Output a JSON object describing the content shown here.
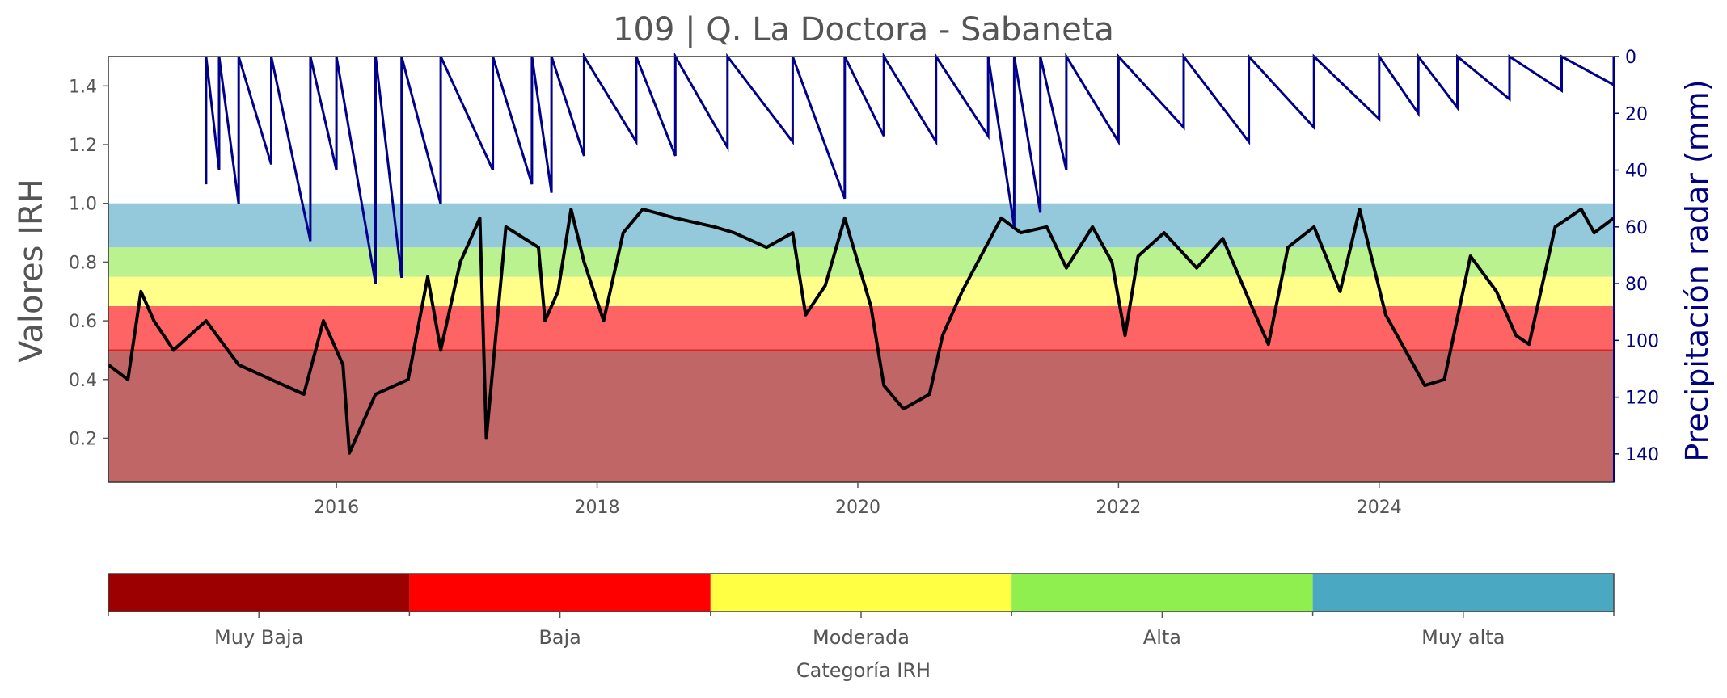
{
  "chart_data": {
    "type": "line",
    "title": "109 | Q. La Doctora - Sabaneta",
    "ylabel": "Valores IRH",
    "y2label": "Precipitación radar (mm)",
    "xlim": [
      2014.25,
      2025.8
    ],
    "ylim": [
      0.05,
      1.5
    ],
    "y2lim": [
      150,
      0
    ],
    "x_ticks": [
      2016,
      2018,
      2020,
      2022,
      2024
    ],
    "y_ticks": [
      0.2,
      0.4,
      0.6,
      0.8,
      1.0,
      1.2,
      1.4
    ],
    "y2_ticks": [
      0,
      20,
      40,
      60,
      80,
      100,
      120,
      140
    ],
    "bands": [
      {
        "from": 0.05,
        "to": 0.5,
        "color": "#c06666"
      },
      {
        "from": 0.5,
        "to": 0.65,
        "color": "#ff6464"
      },
      {
        "from": 0.65,
        "to": 0.75,
        "color": "#ffff8a"
      },
      {
        "from": 0.75,
        "to": 0.85,
        "color": "#b9f28f"
      },
      {
        "from": 0.85,
        "to": 1.0,
        "color": "#94c9dc"
      }
    ],
    "threshold_line": {
      "y": 0.5,
      "color": "#dd2222"
    },
    "series": [
      {
        "axis": "left",
        "color": "#000000",
        "x": [
          2014.25,
          2014.4,
          2014.5,
          2014.6,
          2014.75,
          2015.0,
          2015.25,
          2015.5,
          2015.75,
          2015.9,
          2016.05,
          2016.1,
          2016.3,
          2016.55,
          2016.7,
          2016.8,
          2016.95,
          2017.1,
          2017.15,
          2017.3,
          2017.55,
          2017.6,
          2017.7,
          2017.8,
          2017.9,
          2018.05,
          2018.2,
          2018.35,
          2018.6,
          2018.9,
          2019.05,
          2019.3,
          2019.5,
          2019.6,
          2019.75,
          2019.9,
          2020.1,
          2020.2,
          2020.35,
          2020.55,
          2020.65,
          2020.8,
          2021.1,
          2021.25,
          2021.45,
          2021.6,
          2021.8,
          2021.95,
          2022.05,
          2022.15,
          2022.35,
          2022.6,
          2022.8,
          2023.05,
          2023.15,
          2023.3,
          2023.5,
          2023.7,
          2023.85,
          2024.05,
          2024.2,
          2024.35,
          2024.5,
          2024.7,
          2024.9,
          2025.05,
          2025.15,
          2025.35,
          2025.55,
          2025.65,
          2025.8
        ],
        "y": [
          0.45,
          0.4,
          0.7,
          0.6,
          0.5,
          0.6,
          0.45,
          0.4,
          0.35,
          0.6,
          0.45,
          0.15,
          0.35,
          0.4,
          0.75,
          0.5,
          0.8,
          0.95,
          0.2,
          0.92,
          0.85,
          0.6,
          0.7,
          0.98,
          0.8,
          0.6,
          0.9,
          0.98,
          0.95,
          0.92,
          0.9,
          0.85,
          0.9,
          0.62,
          0.72,
          0.95,
          0.65,
          0.38,
          0.3,
          0.35,
          0.55,
          0.7,
          0.95,
          0.9,
          0.92,
          0.78,
          0.92,
          0.8,
          0.55,
          0.82,
          0.9,
          0.78,
          0.88,
          0.62,
          0.52,
          0.85,
          0.92,
          0.7,
          0.98,
          0.62,
          0.5,
          0.38,
          0.4,
          0.82,
          0.7,
          0.55,
          0.52,
          0.92,
          0.98,
          0.9,
          0.95
        ]
      },
      {
        "axis": "right",
        "color": "#00008b",
        "x": [
          2015.0,
          2015.1,
          2015.25,
          2015.5,
          2015.8,
          2016.0,
          2016.3,
          2016.5,
          2016.8,
          2017.2,
          2017.5,
          2017.65,
          2017.9,
          2018.3,
          2018.6,
          2019.0,
          2019.5,
          2019.9,
          2020.2,
          2020.6,
          2021.0,
          2021.2,
          2021.4,
          2021.6,
          2022.0,
          2022.5,
          2023.0,
          2023.5,
          2024.0,
          2024.3,
          2024.6,
          2025.0,
          2025.4,
          2025.8
        ],
        "y": [
          45,
          40,
          52,
          38,
          65,
          40,
          80,
          78,
          52,
          40,
          45,
          48,
          35,
          30,
          35,
          32,
          30,
          50,
          28,
          30,
          28,
          60,
          55,
          40,
          30,
          25,
          30,
          25,
          22,
          20,
          18,
          15,
          12,
          10
        ]
      }
    ],
    "categories": [
      "Muy Baja",
      "Baja",
      "Moderada",
      "Alta",
      "Muy alta"
    ],
    "category_colors": [
      "#9c0000",
      "#ff0000",
      "#ffff44",
      "#8fef4f",
      "#4ba8c2"
    ],
    "category_axis_label": "Categoría IRH"
  }
}
